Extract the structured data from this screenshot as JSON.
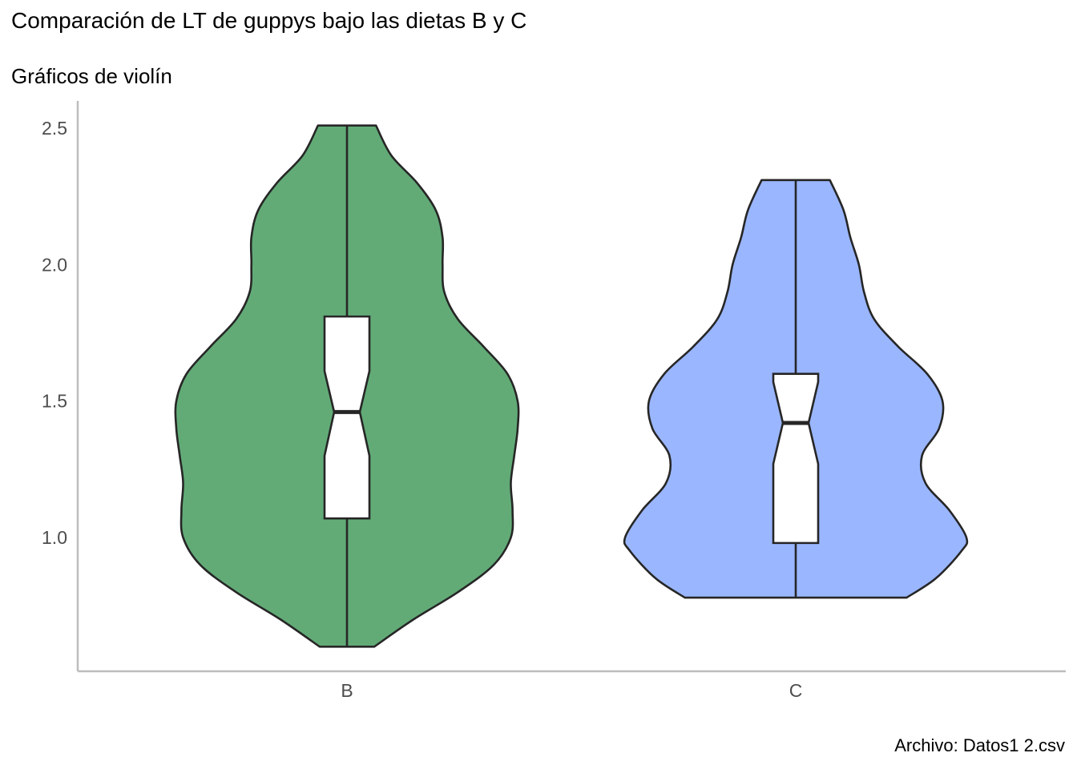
{
  "chart_data": {
    "type": "violin",
    "title": "Comparación de LT de guppys bajo las dietas B y C",
    "subtitle": "Gráficos de violín",
    "caption": "Archivo: Datos1 2.csv",
    "xlabel": "",
    "ylabel": "",
    "categories": [
      "B",
      "C"
    ],
    "ylim": [
      0.51,
      2.6
    ],
    "y_ticks": [
      {
        "value": 1.0,
        "label": "1.0"
      },
      {
        "value": 1.5,
        "label": "1.5"
      },
      {
        "value": 2.0,
        "label": "2.0"
      },
      {
        "value": 2.5,
        "label": "2.5"
      }
    ],
    "grid": false,
    "legend": "none",
    "series": [
      {
        "category": "B",
        "color": "#62AB77",
        "min": 0.6,
        "max": 2.51,
        "q1": 1.07,
        "median": 1.46,
        "q3": 1.81,
        "notch_low": 1.3,
        "notch_high": 1.61,
        "density_profile": [
          {
            "y": 0.6,
            "w": 0.16
          },
          {
            "y": 0.7,
            "w": 0.39
          },
          {
            "y": 0.8,
            "w": 0.65
          },
          {
            "y": 0.9,
            "w": 0.86
          },
          {
            "y": 1.0,
            "w": 0.96
          },
          {
            "y": 1.1,
            "w": 0.97
          },
          {
            "y": 1.2,
            "w": 0.96
          },
          {
            "y": 1.3,
            "w": 0.98
          },
          {
            "y": 1.4,
            "w": 1.0
          },
          {
            "y": 1.5,
            "w": 1.0
          },
          {
            "y": 1.6,
            "w": 0.94
          },
          {
            "y": 1.7,
            "w": 0.8
          },
          {
            "y": 1.8,
            "w": 0.65
          },
          {
            "y": 1.9,
            "w": 0.57
          },
          {
            "y": 2.0,
            "w": 0.56
          },
          {
            "y": 2.1,
            "w": 0.56
          },
          {
            "y": 2.2,
            "w": 0.52
          },
          {
            "y": 2.3,
            "w": 0.41
          },
          {
            "y": 2.4,
            "w": 0.26
          },
          {
            "y": 2.51,
            "w": 0.17
          }
        ]
      },
      {
        "category": "C",
        "color": "#9AB6FE",
        "min": 0.78,
        "max": 2.31,
        "q1": 0.98,
        "median": 1.42,
        "q3": 1.6,
        "notch_low": 1.27,
        "notch_high": 1.57,
        "density_profile": [
          {
            "y": 0.78,
            "w": 0.65
          },
          {
            "y": 0.85,
            "w": 0.82
          },
          {
            "y": 0.95,
            "w": 0.97
          },
          {
            "y": 1.0,
            "w": 1.0
          },
          {
            "y": 1.1,
            "w": 0.9
          },
          {
            "y": 1.2,
            "w": 0.76
          },
          {
            "y": 1.3,
            "w": 0.74
          },
          {
            "y": 1.4,
            "w": 0.84
          },
          {
            "y": 1.5,
            "w": 0.86
          },
          {
            "y": 1.6,
            "w": 0.77
          },
          {
            "y": 1.7,
            "w": 0.6
          },
          {
            "y": 1.8,
            "w": 0.46
          },
          {
            "y": 1.9,
            "w": 0.4
          },
          {
            "y": 2.0,
            "w": 0.37
          },
          {
            "y": 2.1,
            "w": 0.32
          },
          {
            "y": 2.2,
            "w": 0.28
          },
          {
            "y": 2.31,
            "w": 0.2
          }
        ]
      }
    ]
  }
}
